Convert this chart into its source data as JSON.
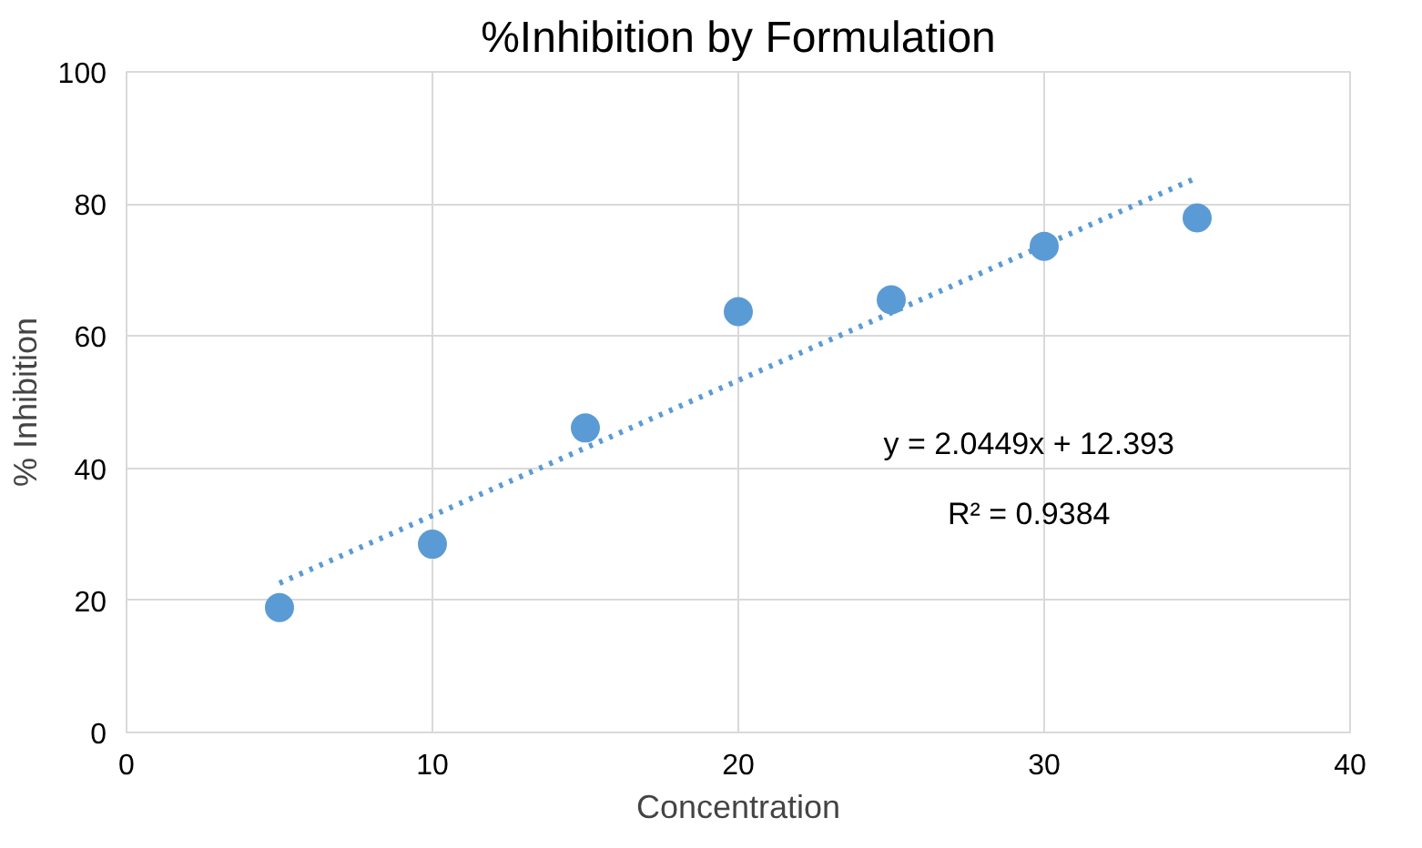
{
  "chart_data": {
    "type": "scatter",
    "title": "%Inhibition by Formulation",
    "xlabel": "Concentration",
    "ylabel": "% Inhibition",
    "x": [
      5,
      10,
      15,
      20,
      25,
      30,
      35
    ],
    "series": [
      {
        "color": "#5b9bd5",
        "marker": "circle",
        "values": [
          18.9,
          28.5,
          46.1,
          63.7,
          65.5,
          73.6,
          77.9
        ]
      },
      {
        "type": "line",
        "color": "#5b9bd5",
        "line_style": "dotted",
        "x": [
          5,
          35
        ],
        "values": [
          22.6,
          84.0
        ]
      }
    ],
    "annotations": [
      "y = 2.0449x + 12.393",
      "R² = 0.9384"
    ],
    "xlim": [
      0,
      40
    ],
    "ylim": [
      0,
      100
    ],
    "xticks": [
      0,
      10,
      20,
      30,
      40
    ],
    "yticks": [
      0,
      20,
      40,
      60,
      80,
      100
    ],
    "grid": true
  }
}
